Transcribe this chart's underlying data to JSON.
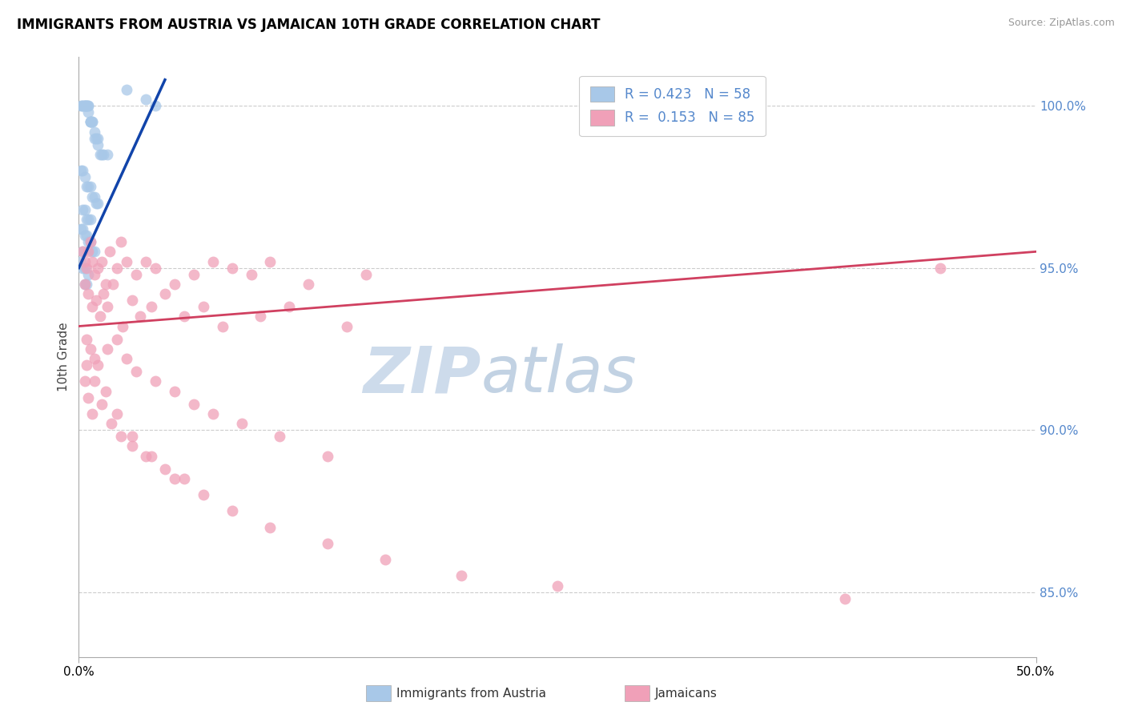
{
  "title": "IMMIGRANTS FROM AUSTRIA VS JAMAICAN 10TH GRADE CORRELATION CHART",
  "source_text": "Source: ZipAtlas.com",
  "ylabel": "10th Grade",
  "xlim": [
    0.0,
    50.0
  ],
  "ylim": [
    83.0,
    101.5
  ],
  "ytick_values": [
    85.0,
    90.0,
    95.0,
    100.0
  ],
  "blue_R": "0.423",
  "blue_N": "58",
  "pink_R": "0.153",
  "pink_N": "85",
  "legend_label_blue": "Immigrants from Austria",
  "legend_label_pink": "Jamaicans",
  "blue_color": "#A8C8E8",
  "pink_color": "#F0A0B8",
  "blue_line_color": "#1144AA",
  "pink_line_color": "#D04060",
  "watermark": "ZIPatlas",
  "watermark_color": "#D0DCF0",
  "blue_scatter_x": [
    0.1,
    0.2,
    0.2,
    0.3,
    0.3,
    0.3,
    0.4,
    0.4,
    0.5,
    0.5,
    0.5,
    0.6,
    0.6,
    0.6,
    0.7,
    0.7,
    0.8,
    0.8,
    0.9,
    1.0,
    1.0,
    1.1,
    1.2,
    1.3,
    1.5,
    0.1,
    0.2,
    0.3,
    0.4,
    0.5,
    0.6,
    0.7,
    0.8,
    0.9,
    1.0,
    0.2,
    0.3,
    0.4,
    0.5,
    0.1,
    0.2,
    0.3,
    0.4,
    0.5,
    0.6,
    0.7,
    0.8,
    0.1,
    0.2,
    0.3,
    2.5,
    3.5,
    4.0,
    0.5,
    0.4,
    0.3,
    0.6,
    0.2
  ],
  "blue_scatter_y": [
    100.0,
    100.0,
    100.0,
    100.0,
    100.0,
    100.0,
    100.0,
    100.0,
    100.0,
    100.0,
    99.8,
    99.5,
    99.5,
    99.5,
    99.5,
    99.5,
    99.2,
    99.0,
    99.0,
    99.0,
    98.8,
    98.5,
    98.5,
    98.5,
    98.5,
    98.0,
    98.0,
    97.8,
    97.5,
    97.5,
    97.5,
    97.2,
    97.2,
    97.0,
    97.0,
    96.8,
    96.8,
    96.5,
    96.5,
    96.2,
    96.2,
    96.0,
    96.0,
    95.8,
    95.8,
    95.5,
    95.5,
    95.2,
    95.0,
    95.0,
    100.5,
    100.2,
    100.0,
    94.8,
    94.5,
    94.5,
    96.5,
    95.5
  ],
  "pink_scatter_x": [
    0.2,
    0.3,
    0.4,
    0.5,
    0.6,
    0.7,
    0.8,
    1.0,
    1.2,
    1.4,
    1.6,
    2.0,
    2.2,
    2.5,
    3.0,
    3.5,
    4.0,
    5.0,
    6.0,
    7.0,
    8.0,
    9.0,
    10.0,
    12.0,
    15.0,
    0.3,
    0.5,
    0.7,
    0.9,
    1.1,
    1.3,
    1.5,
    1.8,
    2.3,
    2.8,
    3.2,
    3.8,
    4.5,
    5.5,
    6.5,
    7.5,
    9.5,
    11.0,
    14.0,
    0.4,
    0.6,
    0.8,
    1.0,
    1.5,
    2.0,
    2.5,
    3.0,
    4.0,
    5.0,
    6.0,
    7.0,
    8.5,
    10.5,
    13.0,
    0.3,
    0.5,
    0.7,
    1.2,
    1.7,
    2.2,
    2.8,
    3.5,
    4.5,
    5.5,
    0.4,
    0.8,
    1.4,
    2.0,
    2.8,
    3.8,
    5.0,
    6.5,
    8.0,
    10.0,
    13.0,
    16.0,
    20.0,
    25.0,
    40.0,
    45.0
  ],
  "pink_scatter_y": [
    95.5,
    95.2,
    95.0,
    95.5,
    95.8,
    95.2,
    94.8,
    95.0,
    95.2,
    94.5,
    95.5,
    95.0,
    95.8,
    95.2,
    94.8,
    95.2,
    95.0,
    94.5,
    94.8,
    95.2,
    95.0,
    94.8,
    95.2,
    94.5,
    94.8,
    94.5,
    94.2,
    93.8,
    94.0,
    93.5,
    94.2,
    93.8,
    94.5,
    93.2,
    94.0,
    93.5,
    93.8,
    94.2,
    93.5,
    93.8,
    93.2,
    93.5,
    93.8,
    93.2,
    92.8,
    92.5,
    92.2,
    92.0,
    92.5,
    92.8,
    92.2,
    91.8,
    91.5,
    91.2,
    90.8,
    90.5,
    90.2,
    89.8,
    89.2,
    91.5,
    91.0,
    90.5,
    90.8,
    90.2,
    89.8,
    89.5,
    89.2,
    88.8,
    88.5,
    92.0,
    91.5,
    91.2,
    90.5,
    89.8,
    89.2,
    88.5,
    88.0,
    87.5,
    87.0,
    86.5,
    86.0,
    85.5,
    85.2,
    84.8,
    95.0
  ],
  "blue_trend_x": [
    0.0,
    4.5
  ],
  "blue_trend_y": [
    95.0,
    100.8
  ],
  "pink_trend_x": [
    0.0,
    50.0
  ],
  "pink_trend_y": [
    93.2,
    95.5
  ]
}
